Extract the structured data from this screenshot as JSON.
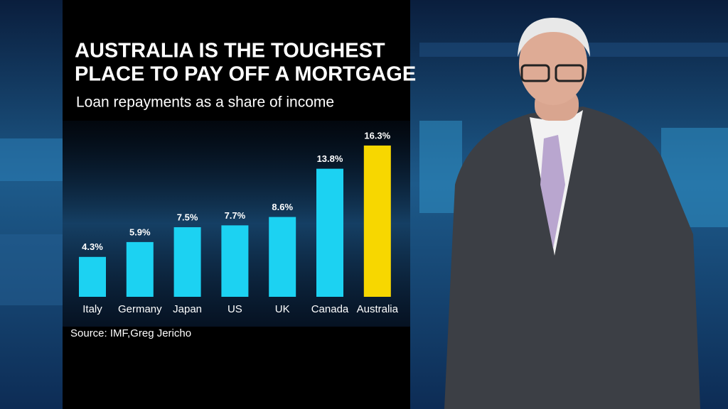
{
  "chart_data": {
    "type": "bar",
    "title_lines": [
      "AUSTRALIA IS THE TOUGHEST",
      "PLACE TO PAY OFF A MORTGAGE"
    ],
    "subtitle": "Loan repayments as a share of income",
    "categories": [
      "Italy",
      "Germany",
      "Japan",
      "US",
      "UK",
      "Canada",
      "Australia"
    ],
    "values": [
      4.3,
      5.9,
      7.5,
      7.7,
      8.6,
      13.8,
      16.3
    ],
    "value_labels": [
      "4.3%",
      "5.9%",
      "7.5%",
      "7.7%",
      "8.6%",
      "13.8%",
      "16.3%"
    ],
    "colors": [
      "#1cd2f2",
      "#1cd2f2",
      "#1cd2f2",
      "#1cd2f2",
      "#1cd2f2",
      "#1cd2f2",
      "#f7d700"
    ],
    "source": "Source: IMF,Greg Jericho"
  }
}
